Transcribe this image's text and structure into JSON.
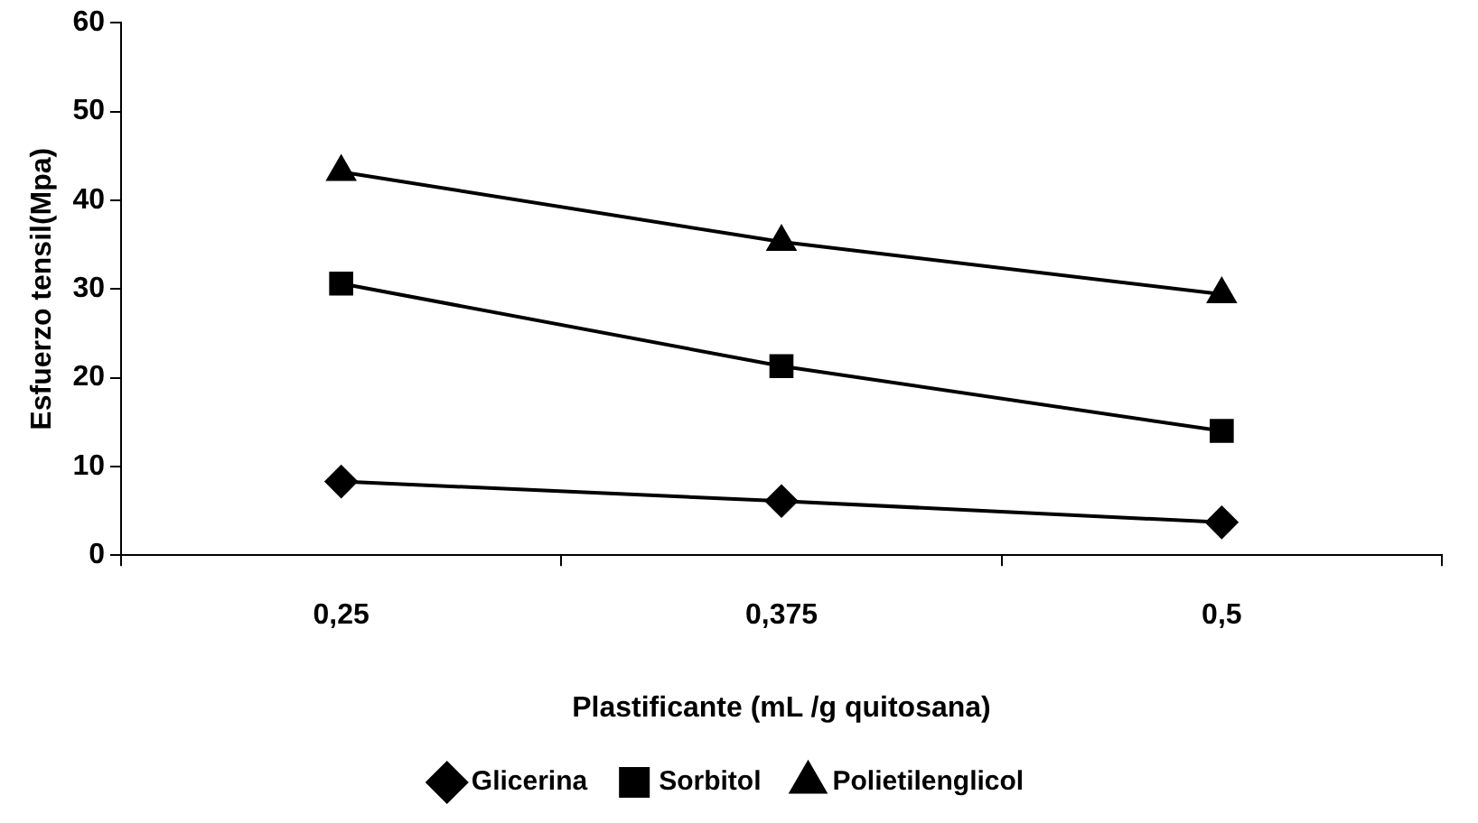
{
  "chart_data": {
    "type": "line",
    "xlabel": "Plastificante (mL /g quitosana)",
    "ylabel": "Esfuerzo tensil(Mpa)",
    "categories": [
      "0,25",
      "0,375",
      "0,5"
    ],
    "series": [
      {
        "name": "Glicerina",
        "color": "#000000",
        "marker": "diamond",
        "values": [
          8.3,
          6.1,
          3.7
        ]
      },
      {
        "name": "Sorbitol",
        "color": "#000000",
        "marker": "square",
        "values": [
          30.6,
          21.3,
          14.0
        ]
      },
      {
        "name": "Polietilenglicol",
        "color": "#000000",
        "marker": "triangle",
        "values": [
          43.2,
          35.3,
          29.4
        ]
      }
    ],
    "ylim": [
      0,
      60
    ],
    "yticks": [
      0,
      10,
      20,
      30,
      40,
      50,
      60
    ],
    "grid": false,
    "legend": "bottom",
    "line_style": "solid"
  }
}
